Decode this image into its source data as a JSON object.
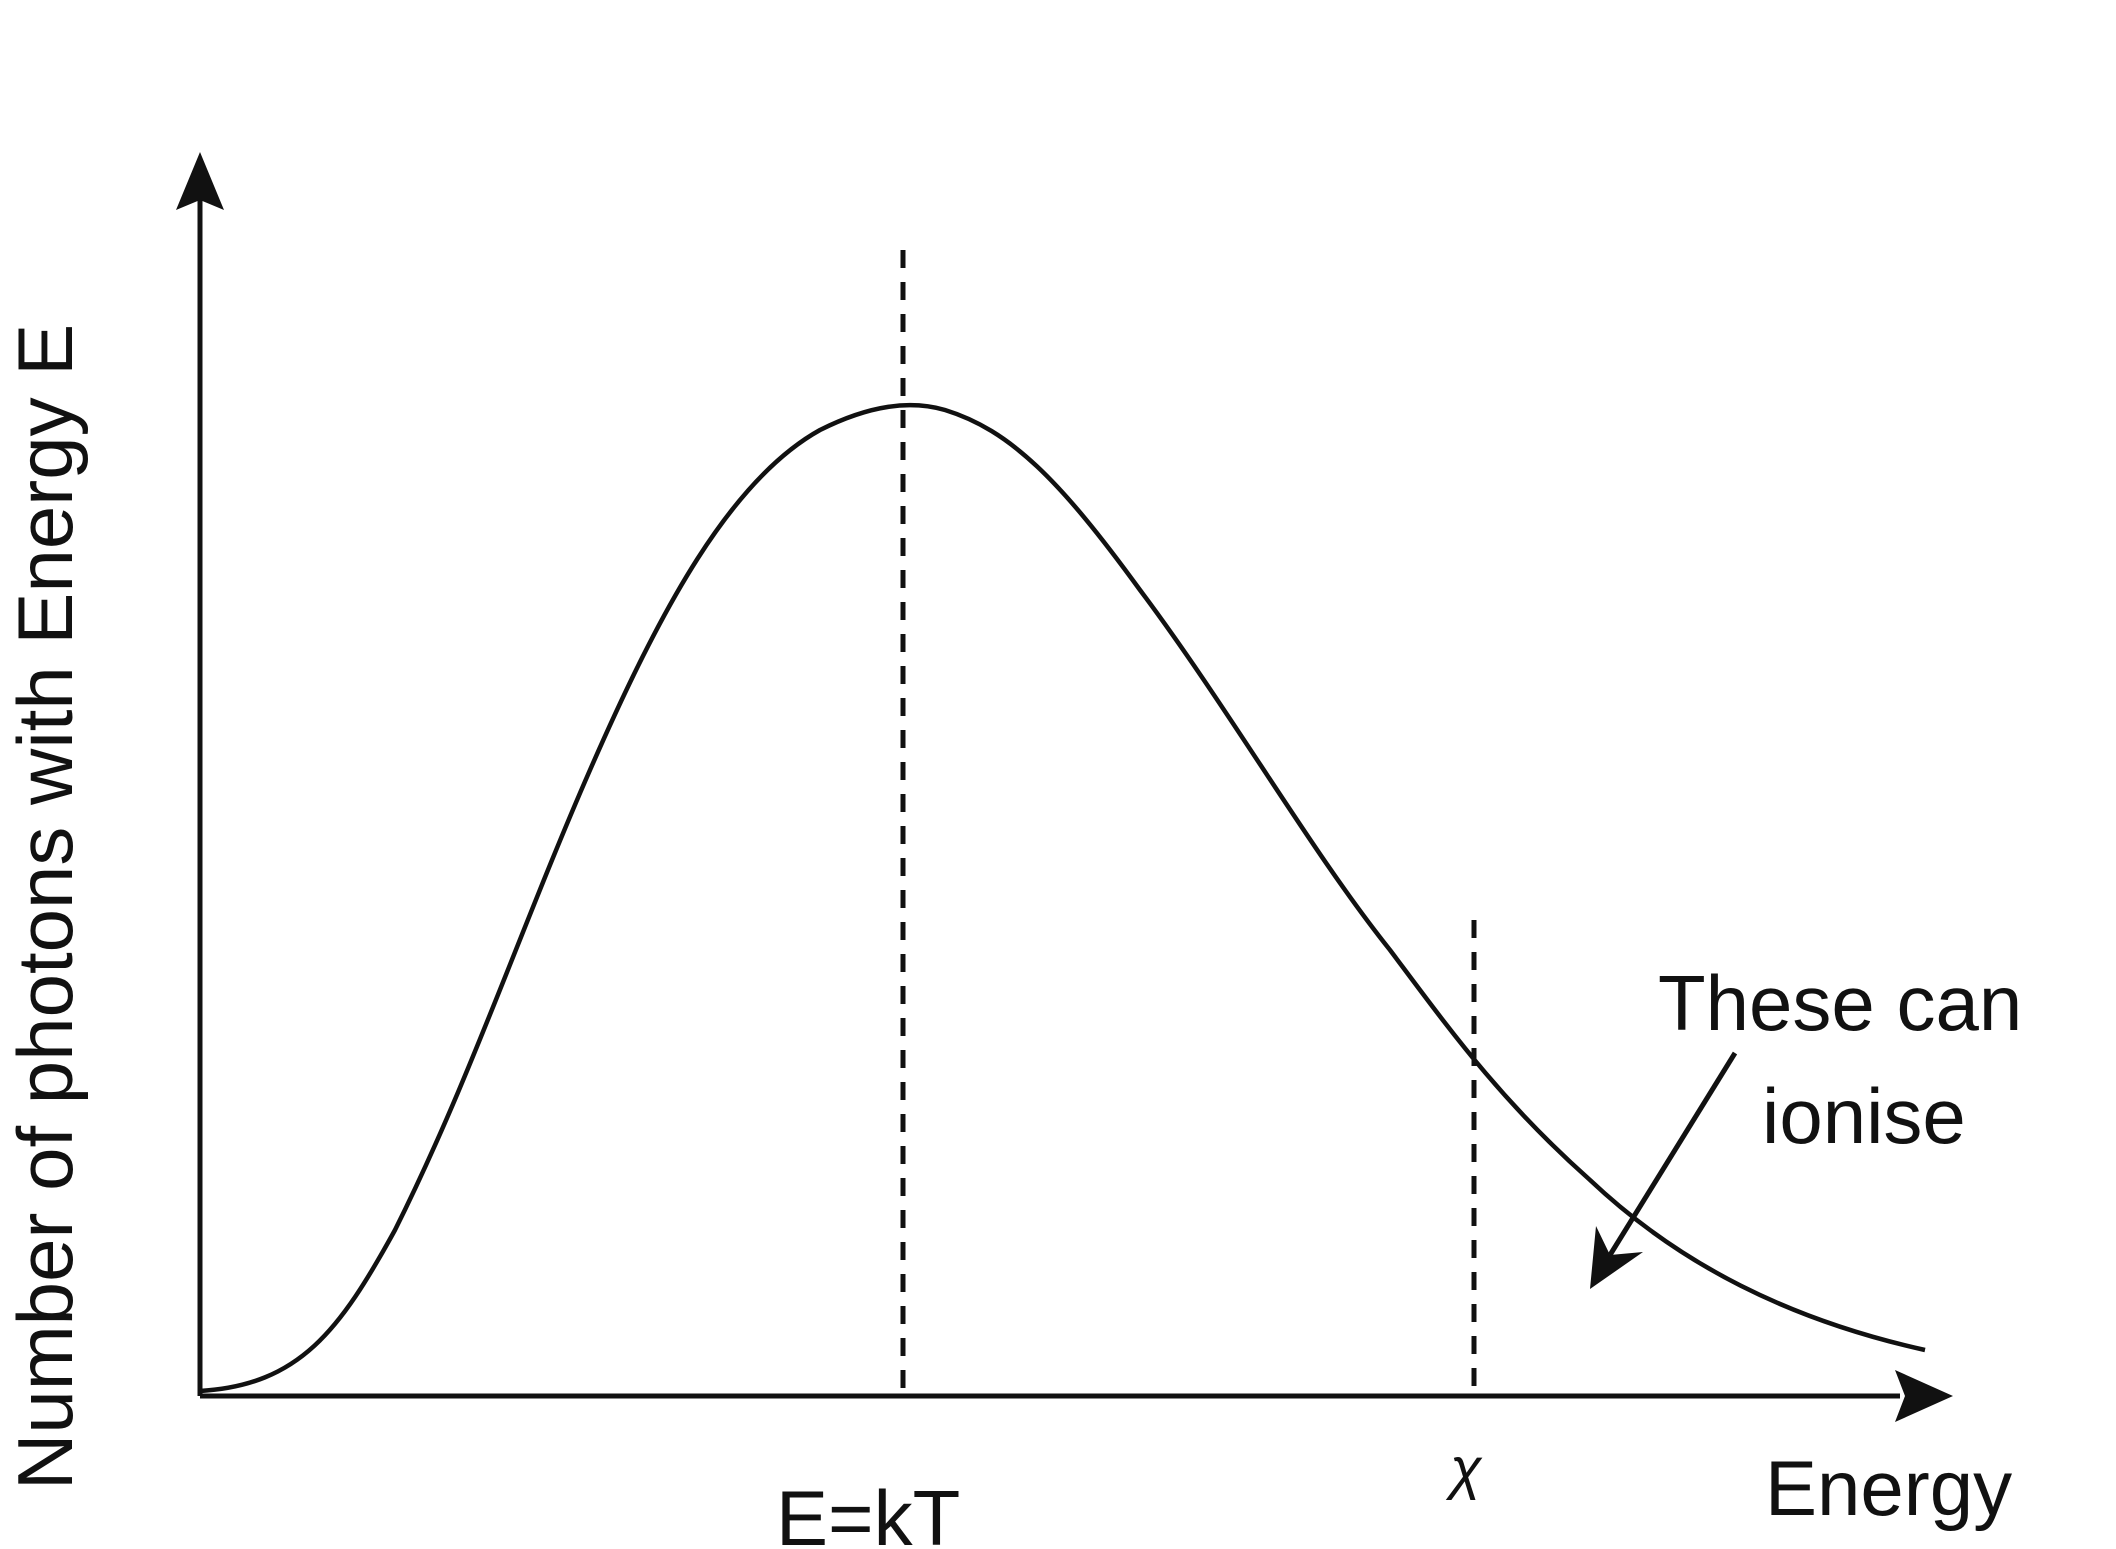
{
  "diagram": {
    "y_axis_label": "Number of photons with Energy E",
    "x_axis_label": "Energy",
    "peak_label": "E=kT",
    "chi_label": "χ",
    "annotation": {
      "line1": "These can",
      "line2": "ionise"
    }
  },
  "style": {
    "stroke": "#111111",
    "background": "#ffffff"
  }
}
